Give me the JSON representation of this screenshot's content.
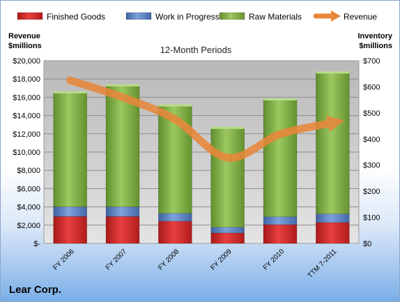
{
  "chart_data": {
    "type": "bar",
    "title": "12-Month Periods",
    "left_axis_label": [
      "Revenue",
      "$millions"
    ],
    "right_axis_label": [
      "Inventory",
      "$millions"
    ],
    "categories": [
      "FY 2006",
      "FY 2007",
      "FY 2008",
      "FY 2009",
      "FY 2010",
      "TTM 7-2011"
    ],
    "series": [
      {
        "name": "Finished Goods",
        "kind": "bar",
        "axis": "right",
        "color": "#d42a2a",
        "values": [
          103,
          103,
          85,
          40,
          72,
          80
        ]
      },
      {
        "name": "Work in Progress",
        "kind": "bar",
        "axis": "right",
        "color": "#5b82c0",
        "values": [
          37,
          37,
          30,
          22,
          30,
          33
        ]
      },
      {
        "name": "Raw Materials",
        "kind": "bar",
        "axis": "right",
        "color": "#86b64a",
        "values": [
          440,
          467,
          415,
          382,
          451,
          543
        ]
      },
      {
        "name": "Revenue",
        "kind": "line",
        "axis": "left",
        "color": "#e8873a",
        "values": [
          17840,
          15995,
          13570,
          9380,
          11955,
          13200
        ]
      }
    ],
    "left_axis": {
      "min": 0,
      "max": 20000,
      "ticks": [
        "$-",
        "$2,000",
        "$4,000",
        "$6,000",
        "$8,000",
        "$10,000",
        "$12,000",
        "$14,000",
        "$16,000",
        "$18,000",
        "$20,000"
      ]
    },
    "right_axis": {
      "min": 0,
      "max": 700,
      "ticks": [
        "$0",
        "$100",
        "$200",
        "$300",
        "$400",
        "$500",
        "$600",
        "$700"
      ]
    },
    "legend_position": "top",
    "grid": true
  },
  "footer": {
    "company": "Lear Corp."
  }
}
